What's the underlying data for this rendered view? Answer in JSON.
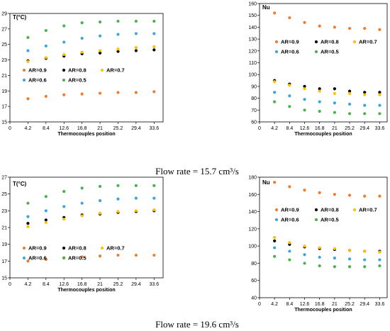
{
  "colors": {
    "AR=0.9": "#ED7D31",
    "AR=0.8": "#000000",
    "AR=0.7": "#FFC000",
    "AR=0.6": "#3DA5DC",
    "AR=0.5": "#4CB14C"
  },
  "captions": {
    "top": "Flow rate = 15.7 cm³/s",
    "bottom": "Flow rate = 19.6 cm³/s"
  },
  "chart_data": [
    {
      "type": "scatter",
      "ylabel": "T(°C)",
      "xlabel": "Thermocouples position",
      "x": [
        4.2,
        8.4,
        12.6,
        16.8,
        21,
        25.2,
        29.4,
        33.6
      ],
      "xticks": [
        "0",
        "4.2",
        "8.4",
        "12.6",
        "16.8",
        "21",
        "25.2",
        "29.4",
        "33.6"
      ],
      "xlim": [
        0,
        35.7
      ],
      "yticks": [
        "15",
        "17",
        "19",
        "21",
        "23",
        "25",
        "27",
        "29"
      ],
      "ylim": [
        15,
        29
      ],
      "grid": false,
      "legend": [
        "AR=0.9",
        "AR=0.8",
        "AR=0.7",
        "AR=0.6",
        "AR=0.5"
      ],
      "series": [
        {
          "name": "AR=0.9",
          "values": [
            18.0,
            18.3,
            18.5,
            18.6,
            18.7,
            18.8,
            18.8,
            18.9
          ]
        },
        {
          "name": "AR=0.8",
          "values": [
            22.9,
            23.2,
            23.5,
            23.8,
            23.9,
            24.1,
            24.2,
            24.3
          ]
        },
        {
          "name": "AR=0.7",
          "values": [
            22.8,
            23.3,
            23.7,
            24.0,
            24.2,
            24.4,
            24.6,
            24.7
          ]
        },
        {
          "name": "AR=0.6",
          "values": [
            24.2,
            24.8,
            25.3,
            25.8,
            26.1,
            26.3,
            26.4,
            26.4
          ]
        },
        {
          "name": "AR=0.5",
          "values": [
            25.9,
            26.8,
            27.4,
            27.8,
            27.9,
            28.0,
            28.0,
            28.0
          ]
        }
      ]
    },
    {
      "type": "scatter",
      "ylabel": "Nu",
      "xlabel": "Thermocouples position",
      "x": [
        4.2,
        8.4,
        12.6,
        16.8,
        21,
        25.2,
        29.4,
        33.6
      ],
      "xticks": [
        "0",
        "4.2",
        "8.4",
        "12.6",
        "16.8",
        "21",
        "25.2",
        "29.4",
        "33.6"
      ],
      "xlim": [
        0,
        35.7
      ],
      "yticks": [
        "60",
        "70",
        "80",
        "90",
        "100",
        "110",
        "120",
        "130",
        "140",
        "150",
        "160"
      ],
      "ylim": [
        60,
        160
      ],
      "grid": false,
      "legend": [
        "AR=0.9",
        "AR=0.8",
        "AR=0.7",
        "AR=0.6",
        "AR=0.5"
      ],
      "series": [
        {
          "name": "AR=0.9",
          "values": [
            152,
            148,
            144,
            141,
            140,
            139,
            139,
            138
          ]
        },
        {
          "name": "AR=0.8",
          "values": [
            95,
            92,
            90,
            88,
            88,
            86,
            85,
            85
          ]
        },
        {
          "name": "AR=0.7",
          "values": [
            94,
            91,
            88,
            86,
            84,
            84,
            83,
            83
          ]
        },
        {
          "name": "AR=0.6",
          "values": [
            85,
            82,
            79,
            77,
            76,
            75,
            74,
            74
          ]
        },
        {
          "name": "AR=0.5",
          "values": [
            77,
            73,
            70,
            69,
            68,
            67,
            67,
            67
          ]
        }
      ]
    },
    {
      "type": "scatter",
      "ylabel": "T(°C)",
      "xlabel": "Thermocouples position",
      "x": [
        4.2,
        8.4,
        12.6,
        16.8,
        21,
        25.2,
        29.4,
        33.6
      ],
      "xticks": [
        "0",
        "4.2",
        "8.4",
        "12.6",
        "16.8",
        "21",
        "25.2",
        "29.4",
        "33.6"
      ],
      "xlim": [
        0,
        35.7
      ],
      "yticks": [
        "15",
        "17",
        "19",
        "21",
        "23",
        "25",
        "27"
      ],
      "ylim": [
        15,
        27
      ],
      "grid": false,
      "legend": [
        "AR=0.9",
        "AR=0.8",
        "AR=0.7",
        "AR=0.6",
        "AR=0.5"
      ],
      "series": [
        {
          "name": "AR=0.9",
          "values": [
            17.0,
            17.2,
            17.4,
            17.5,
            17.6,
            17.7,
            17.7,
            17.7
          ]
        },
        {
          "name": "AR=0.8",
          "values": [
            21.5,
            21.9,
            22.2,
            22.5,
            22.6,
            22.8,
            22.9,
            23.0
          ]
        },
        {
          "name": "AR=0.7",
          "values": [
            21.1,
            21.6,
            22.0,
            22.4,
            22.7,
            22.9,
            23.0,
            23.1
          ]
        },
        {
          "name": "AR=0.6",
          "values": [
            22.3,
            23.0,
            23.5,
            23.9,
            24.2,
            24.4,
            24.5,
            24.5
          ]
        },
        {
          "name": "AR=0.5",
          "values": [
            23.9,
            24.7,
            25.3,
            25.7,
            25.9,
            26.0,
            26.0,
            26.0
          ]
        }
      ]
    },
    {
      "type": "scatter",
      "ylabel": "Nu",
      "xlabel": "Thermocouples position",
      "x": [
        4.2,
        8.4,
        12.6,
        16.8,
        21,
        25.2,
        29.4,
        33.6
      ],
      "xticks": [
        "0",
        "4.2",
        "8.4",
        "12.6",
        "16.8",
        "21",
        "25.2",
        "29.4",
        "33.6"
      ],
      "xlim": [
        0,
        35.7
      ],
      "yticks": [
        "40",
        "60",
        "80",
        "100",
        "120",
        "140",
        "160",
        "180"
      ],
      "ylim": [
        40,
        180
      ],
      "grid": false,
      "legend": [
        "AR=0.9",
        "AR=0.8",
        "AR=0.7",
        "AR=0.6",
        "AR=0.5"
      ],
      "series": [
        {
          "name": "AR=0.9",
          "values": [
            174,
            169,
            165,
            162,
            160,
            159,
            158,
            158
          ]
        },
        {
          "name": "AR=0.8",
          "values": [
            106,
            102,
            99,
            97,
            96,
            95,
            94,
            94
          ]
        },
        {
          "name": "AR=0.7",
          "values": [
            110,
            104,
            100,
            98,
            97,
            95,
            94,
            93
          ]
        },
        {
          "name": "AR=0.6",
          "values": [
            98,
            94,
            90,
            87,
            86,
            85,
            84,
            84
          ]
        },
        {
          "name": "AR=0.5",
          "values": [
            88,
            84,
            80,
            77,
            76,
            76,
            76,
            77
          ]
        }
      ]
    }
  ]
}
